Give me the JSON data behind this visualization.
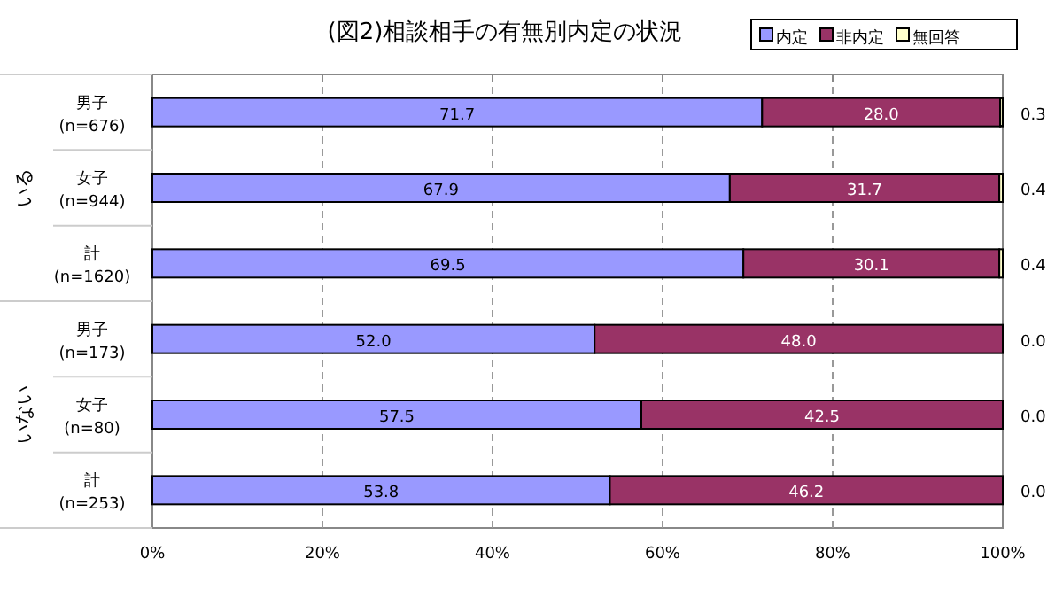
{
  "chart_data": {
    "type": "bar",
    "orientation": "horizontal",
    "stacked": true,
    "title": "(図2)相談相手の有無別内定の状況",
    "categories": [
      "男子 (n=676)",
      "女子 (n=944)",
      "計 (n=1620)",
      "男子 (n=173)",
      "女子 (n=80)",
      "計 (n=253)"
    ],
    "series": [
      {
        "name": "内定",
        "color": "#9999ff",
        "values": [
          71.7,
          67.9,
          69.5,
          52.0,
          57.5,
          53.8
        ],
        "value_labels": [
          "71.7",
          "67.9",
          "69.5",
          "52.0",
          "57.5",
          "53.8"
        ]
      },
      {
        "name": "非内定",
        "color": "#993366",
        "values": [
          28.0,
          31.7,
          30.1,
          48.0,
          42.5,
          46.2
        ],
        "value_labels": [
          "28.0",
          "31.7",
          "30.1",
          "48.0",
          "42.5",
          "46.2"
        ]
      },
      {
        "name": "無回答",
        "color": "#ffffcc",
        "values": [
          0.3,
          0.4,
          0.4,
          0.0,
          0.0,
          0.0
        ],
        "value_labels": [
          "0.3",
          "0.4",
          "0.4",
          "0.0",
          "0.0",
          "0.0"
        ]
      }
    ],
    "xlim": [
      0,
      100
    ],
    "xticks": [
      {
        "value": 0,
        "label": "0%"
      },
      {
        "value": 20,
        "label": "20%"
      },
      {
        "value": 40,
        "label": "40%"
      },
      {
        "value": 60,
        "label": "60%"
      },
      {
        "value": 80,
        "label": "80%"
      },
      {
        "value": 100,
        "label": "100%"
      }
    ],
    "grid": "x",
    "legend": "top right",
    "annotations": [
      "いる",
      "いない"
    ]
  }
}
